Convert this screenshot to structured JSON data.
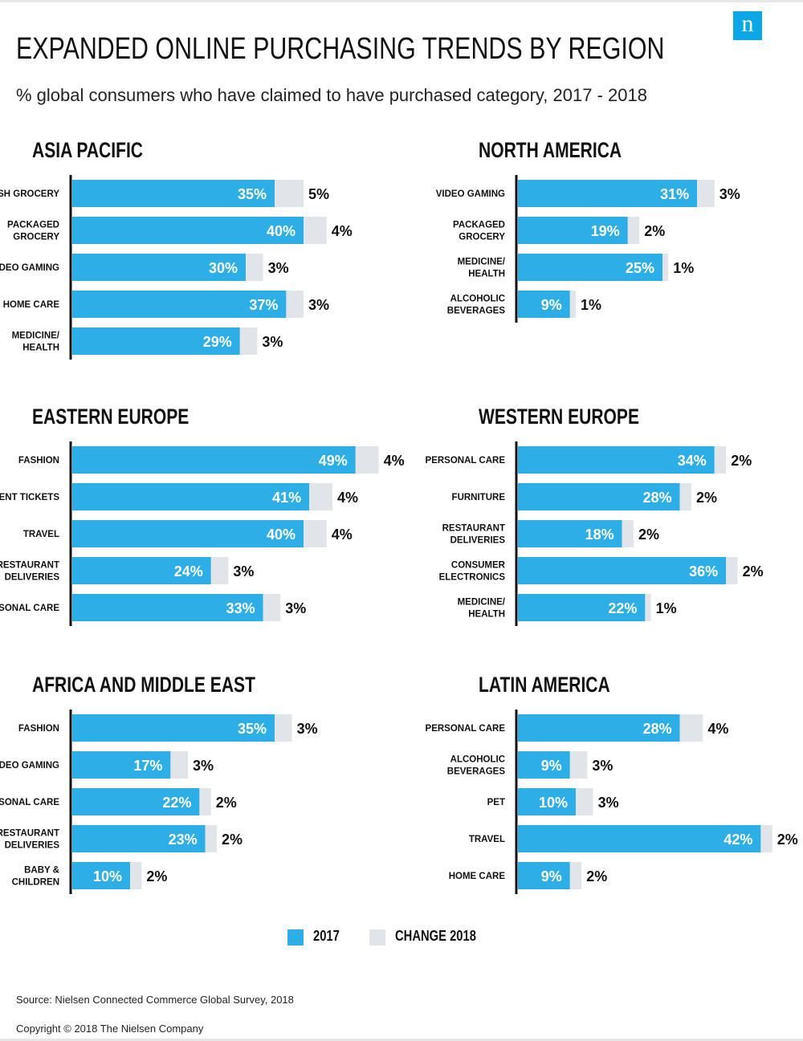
{
  "header": {
    "logo": "n",
    "title": "EXPANDED ONLINE PURCHASING TRENDS BY REGION",
    "subtitle": "% global consumers who have claimed to have purchased category, 2017 - 2018"
  },
  "colors": {
    "base": "#2eaee6",
    "change": "#e1e4e8"
  },
  "legend": {
    "base_label": "2017",
    "change_label": "CHANGE 2018"
  },
  "footer": {
    "source": "Source: Nielsen Connected Commerce Global Survey, 2018",
    "copyright": "Copyright © 2018 The Nielsen Company"
  },
  "chart_data": [
    {
      "type": "bar",
      "title": "ASIA PACIFIC",
      "categories": [
        "FRESH GROCERY",
        "PACKAGED GROCERY",
        "VIDEO GAMING",
        "HOME CARE",
        "MEDICINE/ HEALTH"
      ],
      "series": [
        {
          "name": "2017",
          "values": [
            35,
            40,
            30,
            37,
            29
          ],
          "labels": [
            "35%",
            "40%",
            "30%",
            "37%",
            "29%"
          ]
        },
        {
          "name": "CHANGE 2018",
          "values": [
            5,
            4,
            3,
            3,
            3
          ],
          "labels": [
            "5%",
            "4%",
            "3%",
            "3%",
            "3%"
          ]
        }
      ]
    },
    {
      "type": "bar",
      "title": "NORTH AMERICA",
      "categories": [
        "VIDEO GAMING",
        "PACKAGED GROCERY",
        "MEDICINE/ HEALTH",
        "ALCOHOLIC BEVERAGES"
      ],
      "series": [
        {
          "name": "2017",
          "values": [
            31,
            19,
            25,
            9
          ],
          "labels": [
            "31%",
            "19%",
            "25%",
            "9%"
          ]
        },
        {
          "name": "CHANGE 2018",
          "values": [
            3,
            2,
            1,
            1
          ],
          "labels": [
            "3%",
            "2%",
            "1%",
            "1%"
          ]
        }
      ]
    },
    {
      "type": "bar",
      "title": "EASTERN EUROPE",
      "categories": [
        "FASHION",
        "EVENT TICKETS",
        "TRAVEL",
        "RESTAURANT DELIVERIES",
        "PERSONAL CARE"
      ],
      "series": [
        {
          "name": "2017",
          "values": [
            49,
            41,
            40,
            24,
            33
          ],
          "labels": [
            "49%",
            "41%",
            "40%",
            "24%",
            "33%"
          ]
        },
        {
          "name": "CHANGE 2018",
          "values": [
            4,
            4,
            4,
            3,
            3
          ],
          "labels": [
            "4%",
            "4%",
            "4%",
            "3%",
            "3%"
          ]
        }
      ]
    },
    {
      "type": "bar",
      "title": "WESTERN EUROPE",
      "categories": [
        "PERSONAL CARE",
        "FURNITURE",
        "RESTAURANT DELIVERIES",
        "CONSUMER ELECTRONICS",
        "MEDICINE/ HEALTH"
      ],
      "series": [
        {
          "name": "2017",
          "values": [
            34,
            28,
            18,
            36,
            22
          ],
          "labels": [
            "34%",
            "28%",
            "18%",
            "36%",
            "22%"
          ]
        },
        {
          "name": "CHANGE 2018",
          "values": [
            2,
            2,
            2,
            2,
            1
          ],
          "labels": [
            "2%",
            "2%",
            "2%",
            "2%",
            "1%"
          ]
        }
      ]
    },
    {
      "type": "bar",
      "title": "AFRICA AND MIDDLE EAST",
      "categories": [
        "FASHION",
        "VIDEO GAMING",
        "PERSONAL CARE",
        "RESTAURANT DELIVERIES",
        "BABY & CHILDREN"
      ],
      "series": [
        {
          "name": "2017",
          "values": [
            35,
            17,
            22,
            23,
            10
          ],
          "labels": [
            "35%",
            "17%",
            "22%",
            "23%",
            "10%"
          ]
        },
        {
          "name": "CHANGE 2018",
          "values": [
            3,
            3,
            2,
            2,
            2
          ],
          "labels": [
            "3%",
            "3%",
            "2%",
            "2%",
            "2%"
          ]
        }
      ]
    },
    {
      "type": "bar",
      "title": "LATIN AMERICA",
      "categories": [
        "PERSONAL CARE",
        "ALCOHOLIC BEVERAGES",
        "PET",
        "TRAVEL",
        "HOME CARE"
      ],
      "series": [
        {
          "name": "2017",
          "values": [
            28,
            9,
            10,
            42,
            9
          ],
          "labels": [
            "28%",
            "9%",
            "10%",
            "42%",
            "9%"
          ]
        },
        {
          "name": "CHANGE 2018",
          "values": [
            4,
            3,
            3,
            2,
            2
          ],
          "labels": [
            "4%",
            "3%",
            "3%",
            "2%",
            "2%"
          ]
        }
      ]
    }
  ]
}
